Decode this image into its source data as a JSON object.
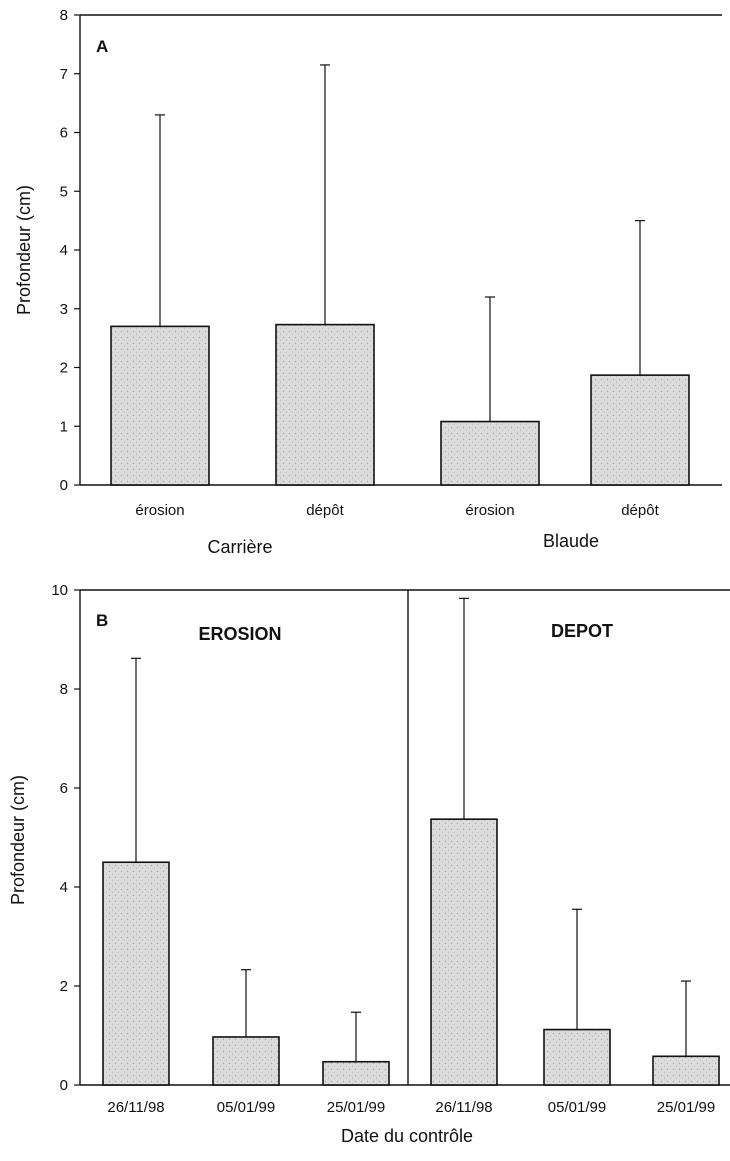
{
  "chart_data": [
    {
      "type": "bar",
      "panel_label": "A",
      "ylabel": "Profondeur (cm)",
      "ylim": [
        0,
        8
      ],
      "yticks": [
        "0",
        "1",
        "2",
        "3",
        "4",
        "5",
        "6",
        "7",
        "8"
      ],
      "categories": [
        "érosion",
        "dépôt",
        "érosion",
        "dépôt"
      ],
      "groups": [
        {
          "label": "Carrière",
          "categories": [
            0,
            1
          ]
        },
        {
          "label": "Blaude",
          "categories": [
            2,
            3
          ]
        }
      ],
      "values": [
        2.7,
        2.73,
        1.08,
        1.87
      ],
      "error_upper": [
        6.3,
        7.15,
        3.2,
        4.5
      ]
    },
    {
      "type": "bar",
      "panel_label": "B",
      "xlabel": "Date du contrôle",
      "ylabel": "Profondeur (cm)",
      "ylim": [
        0,
        10
      ],
      "yticks": [
        "0",
        "2",
        "4",
        "6",
        "8",
        "10"
      ],
      "categories": [
        "26/11/98",
        "05/01/99",
        "25/01/99",
        "26/11/98",
        "05/01/99",
        "25/01/99"
      ],
      "sections": [
        {
          "label": "EROSION",
          "categories": [
            0,
            1,
            2
          ]
        },
        {
          "label": "DEPOT",
          "categories": [
            3,
            4,
            5
          ]
        }
      ],
      "values": [
        4.5,
        0.97,
        0.47,
        5.37,
        1.12,
        0.58
      ],
      "error_upper": [
        8.62,
        2.33,
        1.47,
        9.83,
        3.55,
        2.1
      ]
    }
  ]
}
